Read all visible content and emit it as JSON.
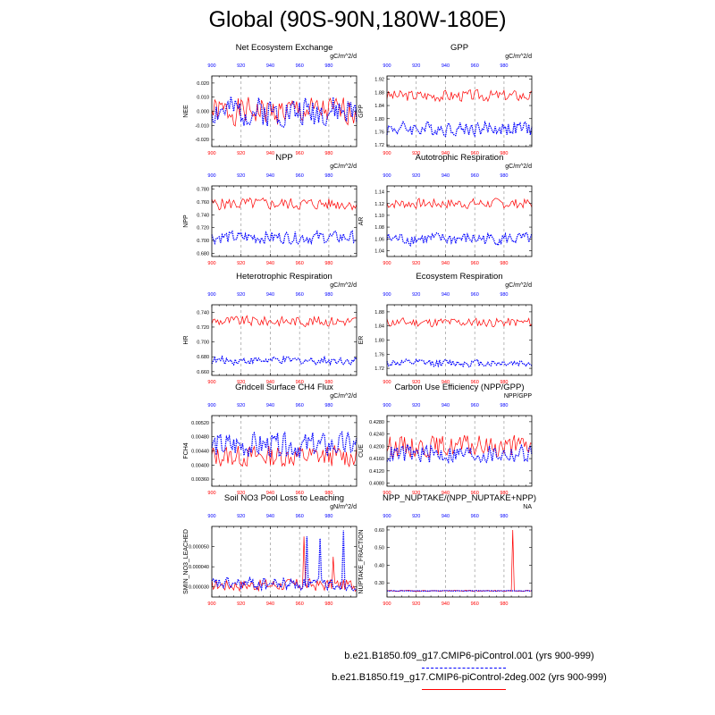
{
  "title": "Global (90S-90N,180W-180E)",
  "legend": [
    {
      "label": "b.e21.B1850.f09_g17.CMIP6-piControl.001 (yrs 900-999)",
      "color": "#0000ff",
      "style": "dashed"
    },
    {
      "label": "b.e21.B1850.f19_g17.CMIP6-piControl-2deg.002 (yrs 900-999)",
      "color": "#ff0000",
      "style": "solid"
    }
  ],
  "chart_data": [
    {
      "type": "line",
      "title": "Net Ecosystem Exchange",
      "ylabel": "NEE",
      "units": "gC/m^2/d",
      "xlim": [
        900,
        999
      ],
      "ylim": [
        -0.025,
        0.025
      ],
      "x_ticks": [
        "900",
        "920",
        "940",
        "960",
        "980"
      ],
      "y_ticks": [
        -0.02,
        -0.01,
        0.0,
        0.01,
        0.02
      ],
      "y_tick_labels": [
        "-0.020",
        "-0.010",
        "0.000",
        "0.010",
        "0.020"
      ],
      "series": [
        {
          "color": "#ff0000",
          "center": 0.0,
          "amp": 0.011,
          "seed": 1,
          "spike": null
        },
        {
          "color": "#0000ff",
          "center": 0.0,
          "amp": 0.012,
          "seed": 2,
          "spike": null
        }
      ]
    },
    {
      "type": "line",
      "title": "GPP",
      "ylabel": "GPP",
      "units": "gC/m^2/d",
      "xlim": [
        900,
        999
      ],
      "ylim": [
        1.715,
        1.93
      ],
      "x_ticks": [
        "900",
        "920",
        "940",
        "960",
        "980"
      ],
      "y_ticks": [
        1.72,
        1.76,
        1.8,
        1.84,
        1.88,
        1.92
      ],
      "y_tick_labels": [
        "1.72",
        "1.76",
        "1.80",
        "1.84",
        "1.88",
        "1.92"
      ],
      "series": [
        {
          "color": "#ff0000",
          "center": 1.87,
          "amp": 0.02,
          "seed": 3,
          "spike": null
        },
        {
          "color": "#0000ff",
          "center": 1.77,
          "amp": 0.025,
          "seed": 4,
          "spike": null
        }
      ]
    },
    {
      "type": "line",
      "title": "NPP",
      "ylabel": "NPP",
      "units": "gC/m^2/d",
      "xlim": [
        900,
        999
      ],
      "ylim": [
        0.675,
        0.785
      ],
      "x_ticks": [
        "900",
        "920",
        "940",
        "960",
        "980"
      ],
      "y_ticks": [
        0.68,
        0.7,
        0.72,
        0.74,
        0.76,
        0.78
      ],
      "y_tick_labels": [
        "0.680",
        "0.700",
        "0.720",
        "0.740",
        "0.760",
        "0.780"
      ],
      "series": [
        {
          "color": "#ff0000",
          "center": 0.757,
          "amp": 0.011,
          "seed": 5,
          "spike": null
        },
        {
          "color": "#0000ff",
          "center": 0.705,
          "amp": 0.011,
          "seed": 6,
          "spike": null
        }
      ]
    },
    {
      "type": "line",
      "title": "Autotrophic Respiration",
      "ylabel": "AR",
      "units": "gC/m^2/d",
      "xlim": [
        900,
        999
      ],
      "ylim": [
        1.03,
        1.15
      ],
      "x_ticks": [
        "900",
        "920",
        "940",
        "960",
        "980"
      ],
      "y_ticks": [
        1.04,
        1.06,
        1.08,
        1.1,
        1.12,
        1.14
      ],
      "y_tick_labels": [
        "1.04",
        "1.06",
        "1.08",
        "1.10",
        "1.12",
        "1.14"
      ],
      "series": [
        {
          "color": "#ff0000",
          "center": 1.12,
          "amp": 0.01,
          "seed": 7,
          "spike": null
        },
        {
          "color": "#0000ff",
          "center": 1.06,
          "amp": 0.012,
          "seed": 8,
          "spike": null
        }
      ]
    },
    {
      "type": "line",
      "title": "Heterotrophic Respiration",
      "ylabel": "HR",
      "units": "gC/m^2/d",
      "xlim": [
        900,
        999
      ],
      "ylim": [
        0.655,
        0.75
      ],
      "x_ticks": [
        "900",
        "920",
        "940",
        "960",
        "980"
      ],
      "y_ticks": [
        0.66,
        0.68,
        0.7,
        0.72,
        0.74
      ],
      "y_tick_labels": [
        "0.660",
        "0.680",
        "0.700",
        "0.720",
        "0.740"
      ],
      "series": [
        {
          "color": "#ff0000",
          "center": 0.728,
          "amp": 0.008,
          "seed": 9,
          "spike": null
        },
        {
          "color": "#0000ff",
          "center": 0.675,
          "amp": 0.006,
          "seed": 10,
          "spike": null
        }
      ]
    },
    {
      "type": "line",
      "title": "Ecosystem Respiration",
      "ylabel": "ER",
      "units": "gC/m^2/d",
      "xlim": [
        900,
        999
      ],
      "ylim": [
        1.7,
        1.9
      ],
      "x_ticks": [
        "900",
        "920",
        "940",
        "960",
        "980"
      ],
      "y_ticks": [
        1.72,
        1.76,
        1.8,
        1.84,
        1.88
      ],
      "y_tick_labels": [
        "1.72",
        "1.76",
        "1.80",
        "1.84",
        "1.88"
      ],
      "series": [
        {
          "color": "#ff0000",
          "center": 1.85,
          "amp": 0.015,
          "seed": 11,
          "spike": null
        },
        {
          "color": "#0000ff",
          "center": 1.735,
          "amp": 0.012,
          "seed": 12,
          "spike": null
        }
      ]
    },
    {
      "type": "line",
      "title": "Gridcell Surface CH4 Flux",
      "ylabel": "FCH4",
      "units": "gC/m^2/d",
      "xlim": [
        900,
        999
      ],
      "ylim": [
        0.0034,
        0.0054
      ],
      "x_ticks": [
        "900",
        "920",
        "940",
        "960",
        "980"
      ],
      "y_ticks": [
        0.0036,
        0.004,
        0.0044,
        0.0048,
        0.0052
      ],
      "y_tick_labels": [
        "0.00360",
        "0.00400",
        "0.00440",
        "0.00480",
        "0.00520"
      ],
      "series": [
        {
          "color": "#ff0000",
          "center": 0.00425,
          "amp": 0.00035,
          "seed": 13,
          "spike": null
        },
        {
          "color": "#0000ff",
          "center": 0.00455,
          "amp": 0.0004,
          "seed": 14,
          "spike": null
        }
      ]
    },
    {
      "type": "line",
      "title": "Carbon Use Efficiency (NPP/GPP)",
      "ylabel": "CUE",
      "units": "NPP/GPP",
      "xlim": [
        900,
        999
      ],
      "ylim": [
        0.407,
        0.43
      ],
      "x_ticks": [
        "900",
        "920",
        "940",
        "960",
        "980"
      ],
      "y_ticks": [
        0.408,
        0.412,
        0.416,
        0.42,
        0.424,
        0.428
      ],
      "y_tick_labels": [
        "0.4080",
        "0.4120",
        "0.4160",
        "0.4200",
        "0.4240",
        "0.4280"
      ],
      "series": [
        {
          "color": "#ff0000",
          "center": 0.42,
          "amp": 0.004,
          "seed": 15,
          "spike": null
        },
        {
          "color": "#0000ff",
          "center": 0.4175,
          "amp": 0.0035,
          "seed": 16,
          "spike": null
        }
      ]
    },
    {
      "type": "line",
      "title": "Soil NO3 Pool Loss to Leaching",
      "ylabel": "SMIN_NO3_LEACHED",
      "units": "gN/m^2/d",
      "xlim": [
        900,
        999
      ],
      "ylim": [
        2.5e-05,
        6e-05
      ],
      "x_ticks": [
        "900",
        "920",
        "940",
        "960",
        "980"
      ],
      "y_ticks": [
        3e-05,
        4e-05,
        5e-05
      ],
      "y_tick_labels": [
        "0.000030",
        "0.000040",
        "0.000050"
      ],
      "series": [
        {
          "color": "#ff0000",
          "center": 3.1e-05,
          "amp": 3.5e-06,
          "seed": 17,
          "spike": [
            [
              963,
              5.5e-05
            ],
            [
              983,
              4.5e-05
            ]
          ]
        },
        {
          "color": "#0000ff",
          "center": 3.15e-05,
          "amp": 3.5e-06,
          "seed": 18,
          "spike": [
            [
              965,
              5.5e-05
            ],
            [
              974,
              5.4e-05
            ],
            [
              990,
              5.8e-05
            ]
          ]
        }
      ]
    },
    {
      "type": "line",
      "title": "NPP_NUPTAKE/(NPP_NUPTAKE+NPP)",
      "ylabel": "NUPTAKE_FRACTION",
      "units": "NA",
      "xlim": [
        900,
        999
      ],
      "ylim": [
        0.22,
        0.62
      ],
      "x_ticks": [
        "900",
        "920",
        "940",
        "960",
        "980"
      ],
      "y_ticks": [
        0.3,
        0.4,
        0.5,
        0.6
      ],
      "y_tick_labels": [
        "0.30",
        "0.40",
        "0.50",
        "0.60"
      ],
      "series": [
        {
          "color": "#ff0000",
          "center": 0.255,
          "amp": 0.004,
          "seed": 19,
          "spike": [
            [
              986,
              0.6
            ]
          ]
        },
        {
          "color": "#0000ff",
          "center": 0.255,
          "amp": 0.002,
          "seed": 20,
          "spike": null
        }
      ]
    }
  ]
}
